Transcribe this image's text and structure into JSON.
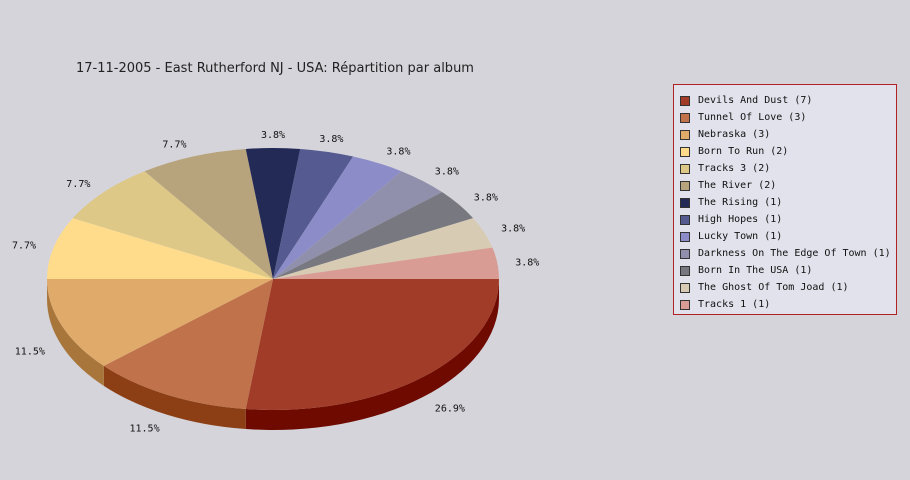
{
  "chart_data": {
    "type": "pie",
    "title": "17-11-2005 - East Rutherford NJ - USA:  Répartition par album",
    "slices": [
      {
        "name": "Devils And Dust (7)",
        "value": 7,
        "label": "26.9%",
        "color": "#a03c28",
        "side": "#6e0a00"
      },
      {
        "name": "Tunnel Of Love (3)",
        "value": 3,
        "label": "11.5%",
        "color": "#c0724a",
        "side": "#8c3e14"
      },
      {
        "name": "Nebraska (3)",
        "value": 3,
        "label": "11.5%",
        "color": "#e0aa6a",
        "side": "#a8763a"
      },
      {
        "name": "Born To Run (2)",
        "value": 2,
        "label": "7.7%",
        "color": "#ffdc8c",
        "side": "#c8a85a"
      },
      {
        "name": "Tracks 3 (2)",
        "value": 2,
        "label": "7.7%",
        "color": "#dec888",
        "side": "#a89458"
      },
      {
        "name": "The River (2)",
        "value": 2,
        "label": "7.7%",
        "color": "#b8a47c",
        "side": "#84704c"
      },
      {
        "name": "The Rising (1)",
        "value": 1,
        "label": "3.8%",
        "color": "#232a55",
        "side": "#101530"
      },
      {
        "name": "High Hopes (1)",
        "value": 1,
        "label": "3.8%",
        "color": "#555a90",
        "side": "#303562"
      },
      {
        "name": "Lucky Town (1)",
        "value": 1,
        "label": "3.8%",
        "color": "#8c8cc8",
        "side": "#5c5c94"
      },
      {
        "name": "Darkness On The Edge Of Town (1)",
        "value": 1,
        "label": "3.8%",
        "color": "#9090ac",
        "side": "#60607c"
      },
      {
        "name": "Born In The USA (1)",
        "value": 1,
        "label": "3.8%",
        "color": "#787880",
        "side": "#4c4c54"
      },
      {
        "name": "The Ghost Of Tom Joad (1)",
        "value": 1,
        "label": "3.8%",
        "color": "#d8cbb4",
        "side": "#a89a84"
      },
      {
        "name": "Tracks 1 (1)",
        "value": 1,
        "label": "3.8%",
        "color": "#d89c94",
        "side": "#a86a62"
      }
    ],
    "legend_position": "right"
  }
}
